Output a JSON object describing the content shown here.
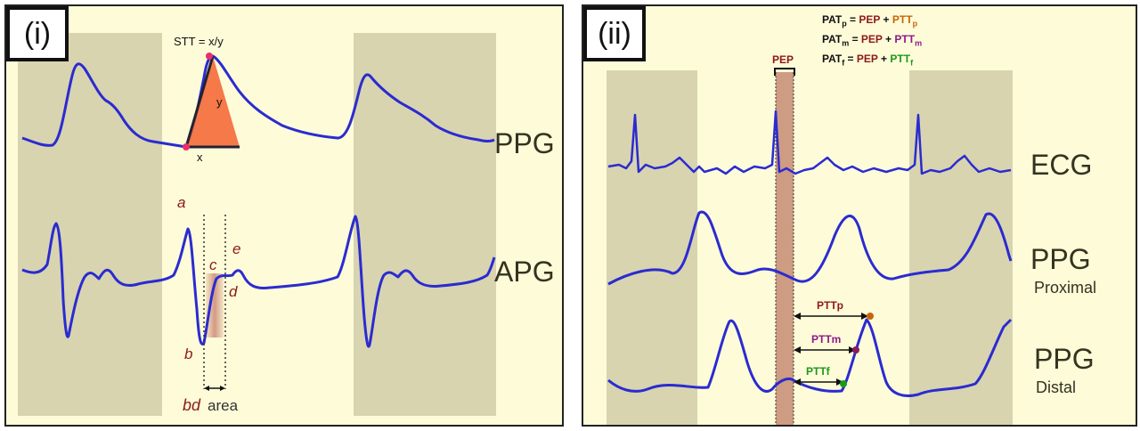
{
  "panel_i": {
    "label": "(i)",
    "ppg_label": "PPG",
    "apg_label": "APG",
    "stt_formula": "STT = x/y",
    "x_label": "x",
    "y_label": "y",
    "apg_points": {
      "a": "a",
      "b": "b",
      "c": "c",
      "d": "d",
      "e": "e"
    },
    "bd_label": "bd",
    "area_label": "area"
  },
  "panel_ii": {
    "label": "(ii)",
    "formulas": [
      {
        "lhs": "PAT",
        "lhs_sub": "p",
        "eq": " = ",
        "pep": "PEP",
        "plus": " + ",
        "ptt": "PTT",
        "ptt_sub": "p",
        "color": "orange"
      },
      {
        "lhs": "PAT",
        "lhs_sub": "m",
        "eq": " = ",
        "pep": "PEP",
        "plus": " + ",
        "ptt": "PTT",
        "ptt_sub": "m",
        "color": "purple"
      },
      {
        "lhs": "PAT",
        "lhs_sub": "f",
        "eq": " = ",
        "pep": "PEP",
        "plus": " + ",
        "ptt": "PTT",
        "ptt_sub": "f",
        "color": "green"
      }
    ],
    "pep_label": "PEP",
    "ecg_label": "ECG",
    "ppg_proximal_label": "PPG",
    "proximal_sub": "Proximal",
    "ppg_distal_label": "PPG",
    "distal_sub": "Distal",
    "pttp_label": "PTTp",
    "pttm_label": "PTTm",
    "pttf_label": "PTTf"
  },
  "colors": {
    "trace": "#2b2bd0",
    "panel_bg": "#fdfbd8",
    "shade": "#d8d4b0",
    "pep_band": "#c9907a",
    "triangle": "#f46a3a",
    "dark_red": "#8b1a1a",
    "orange": "#c8640a",
    "purple": "#8b1a8b",
    "green": "#1a9a1a"
  }
}
